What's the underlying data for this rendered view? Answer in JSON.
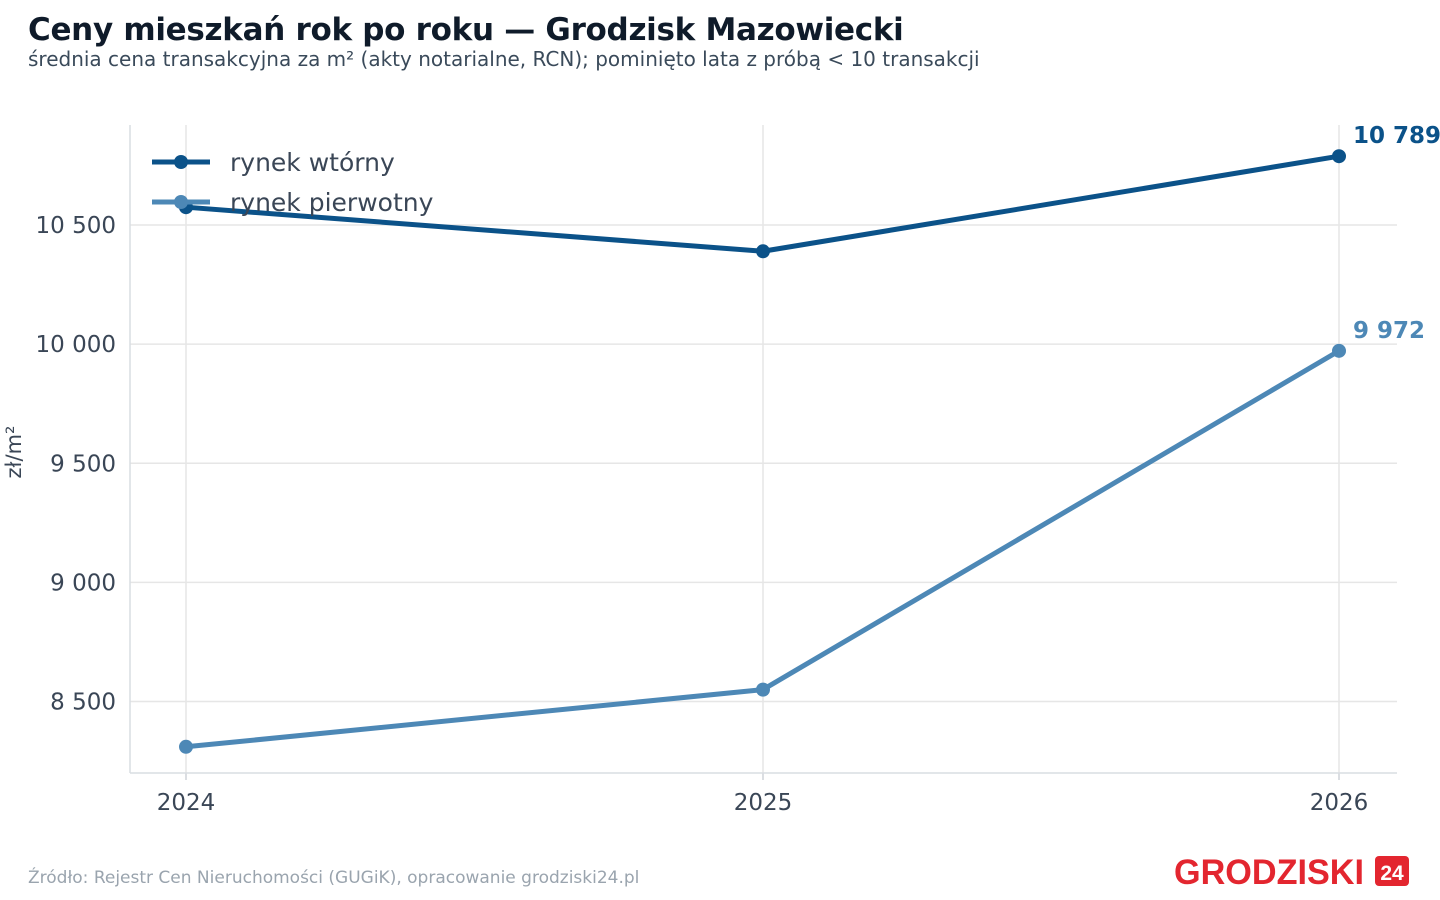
{
  "header": {
    "title": "Ceny mieszkań rok po roku — Grodzisk Mazowiecki",
    "subtitle": "średnia cena transakcyjna za m² (akty notarialne, RCN); pominięto lata z próbą < 10 transakcji"
  },
  "footer": {
    "source": "Źródło: Rejestr Cen Nieruchomości (GUGiK), opracowanie grodziski24.pl",
    "logo_text": "GRODZISKI",
    "logo_badge": "24"
  },
  "colors": {
    "secondary": "#0b5289",
    "primary": "#4d88b6",
    "grid": "#e6e6e6",
    "logo": "#e3262f"
  },
  "chart_data": {
    "type": "line",
    "categories": [
      "2024",
      "2025",
      "2026"
    ],
    "series": [
      {
        "name": "rynek wtórny",
        "values": [
          10575,
          10390,
          10789
        ],
        "color": "#0b5289",
        "end_label": "10 789"
      },
      {
        "name": "rynek pierwotny",
        "values": [
          8310,
          8550,
          9972
        ],
        "color": "#4d88b6",
        "end_label": "9 972"
      }
    ],
    "ylabel": "zł/m²",
    "ylim": [
      8200,
      10920
    ],
    "yticks": [
      8500,
      9000,
      9500,
      10000,
      10500
    ],
    "ytick_labels": [
      "8 500",
      "9 000",
      "9 500",
      "10 000",
      "10 500"
    ],
    "grid": true,
    "legend_position": "top-left"
  }
}
